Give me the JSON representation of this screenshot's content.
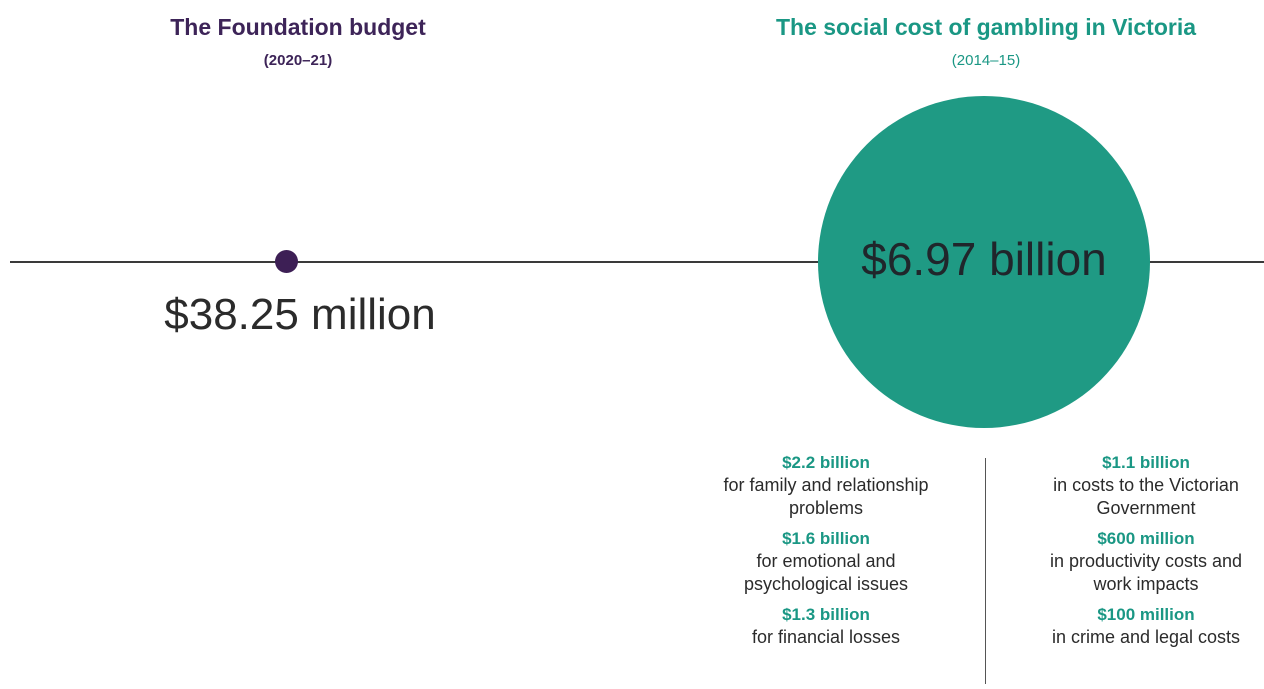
{
  "left": {
    "title": "The Foundation budget",
    "year": "(2020–21)",
    "value": "$38.25 million"
  },
  "right": {
    "title": "The social cost of gambling in Victoria",
    "year": "(2014–15)",
    "value": "$6.97 billion"
  },
  "colors": {
    "purple": "#3d2458",
    "teal": "#1f9a84",
    "axis": "#3a3a3a"
  },
  "breakdown": {
    "left_column": [
      {
        "amount": "$2.2 billion",
        "desc": "for family and relationship problems"
      },
      {
        "amount": "$1.6 billion",
        "desc": "for emotional and psychological issues"
      },
      {
        "amount": "$1.3 billion",
        "desc": "for financial losses"
      }
    ],
    "right_column": [
      {
        "amount": "$1.1 billion",
        "desc": "in costs to the Victorian Government"
      },
      {
        "amount": "$600 million",
        "desc": "in productivity costs and work impacts"
      },
      {
        "amount": "$100 million",
        "desc": "in crime and legal costs"
      }
    ]
  }
}
